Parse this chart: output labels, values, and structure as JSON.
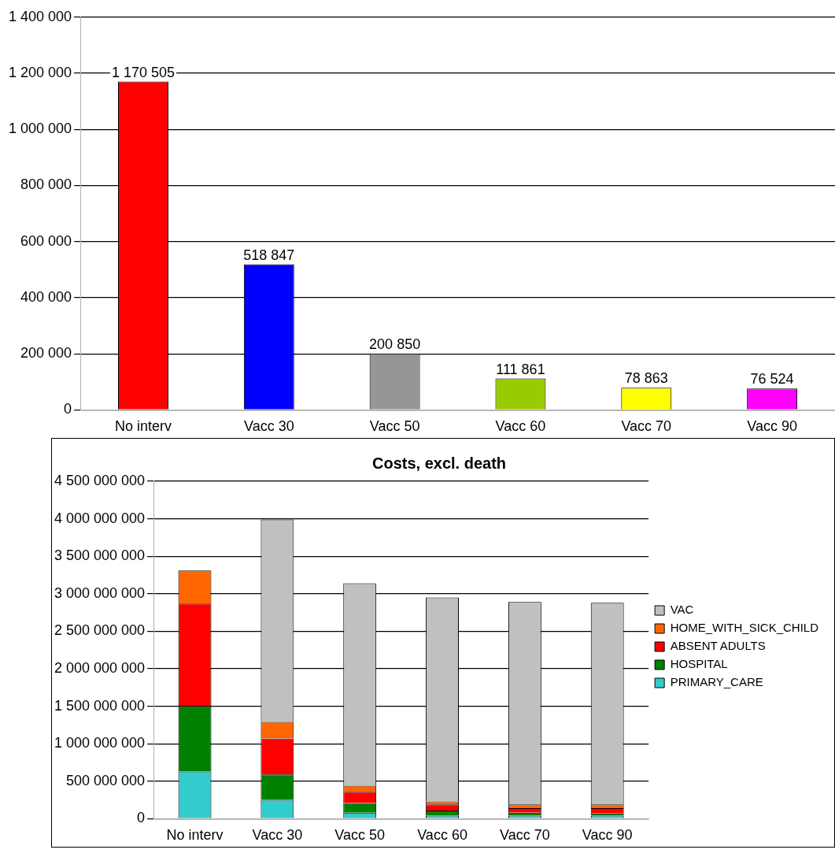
{
  "chart_data": [
    {
      "type": "bar",
      "categories": [
        "No interv",
        "Vacc 30",
        "Vacc 50",
        "Vacc 60",
        "Vacc 70",
        "Vacc 90"
      ],
      "values": [
        1170505,
        518847,
        200850,
        111861,
        78863,
        76524
      ],
      "colors": [
        "#ff0000",
        "#0000ff",
        "#969696",
        "#99cc00",
        "#ffff00",
        "#ff00ff"
      ],
      "value_labels": [
        "1 170 505",
        "518 847",
        "200 850",
        "111 861",
        "78 863",
        "76 524"
      ],
      "ylim": [
        0,
        1400000
      ],
      "yticks": [
        {
          "value": 0,
          "label": "0"
        },
        {
          "value": 200000,
          "label": "200 000"
        },
        {
          "value": 400000,
          "label": "400 000"
        },
        {
          "value": 600000,
          "label": "600 000"
        },
        {
          "value": 800000,
          "label": "800 000"
        },
        {
          "value": 1000000,
          "label": "1 000 000"
        },
        {
          "value": 1200000,
          "label": "1 200 000"
        },
        {
          "value": 1400000,
          "label": "1 400 000"
        }
      ],
      "grid": "y"
    },
    {
      "type": "bar",
      "title": "Costs, excl. death",
      "categories": [
        "No interv",
        "Vacc 30",
        "Vacc 50",
        "Vacc 60",
        "Vacc 70",
        "Vacc 90"
      ],
      "stacked": true,
      "legend": "right",
      "series": [
        {
          "name": "PRIMARY_CARE",
          "color": "#33cccc",
          "values": [
            630000000,
            250000000,
            80000000,
            40000000,
            40000000,
            40000000
          ]
        },
        {
          "name": "HOSPITAL",
          "color": "#008000",
          "values": [
            870000000,
            340000000,
            130000000,
            70000000,
            40000000,
            30000000
          ]
        },
        {
          "name": "ABSENT ADULTS",
          "color": "#ff0000",
          "values": [
            1370000000,
            480000000,
            150000000,
            80000000,
            60000000,
            70000000
          ]
        },
        {
          "name": "HOME_WITH_SICK_CHILD",
          "color": "#ff6600",
          "values": [
            440000000,
            220000000,
            80000000,
            40000000,
            50000000,
            50000000
          ]
        },
        {
          "name": "VAC",
          "color": "#c0c0c0",
          "values": [
            null,
            2700000000,
            2700000000,
            2720000000,
            2700000000,
            2690000000
          ]
        }
      ],
      "ylim": [
        0,
        4500000000
      ],
      "yticks": [
        {
          "value": 0,
          "label": "0"
        },
        {
          "value": 500000000,
          "label": "500 000 000"
        },
        {
          "value": 1000000000,
          "label": "1 000 000 000"
        },
        {
          "value": 1500000000,
          "label": "1 500 000 000"
        },
        {
          "value": 2000000000,
          "label": "2 000 000 000"
        },
        {
          "value": 2500000000,
          "label": "2 500 000 000"
        },
        {
          "value": 3000000000,
          "label": "3 000 000 000"
        },
        {
          "value": 3500000000,
          "label": "3 500 000 000"
        },
        {
          "value": 4000000000,
          "label": "4 000 000 000"
        },
        {
          "value": 4500000000,
          "label": "4 500 000 000"
        }
      ],
      "grid": "y"
    }
  ]
}
